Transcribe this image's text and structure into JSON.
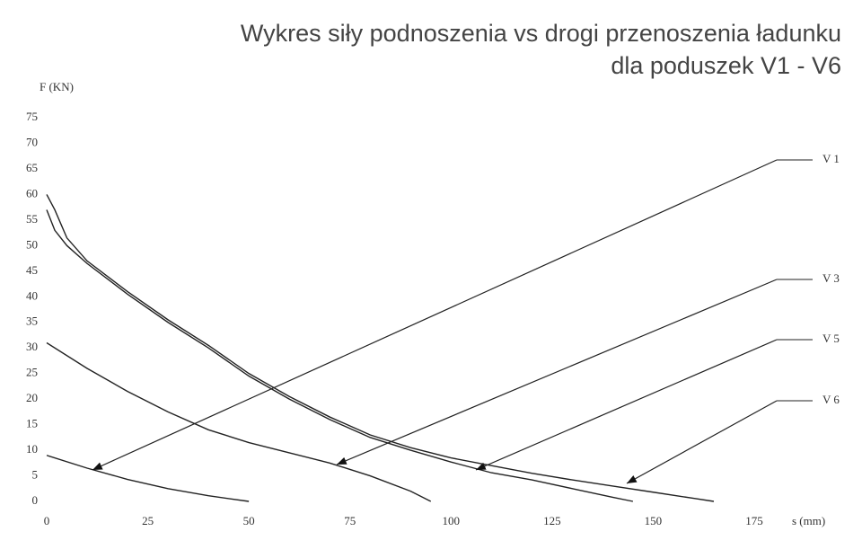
{
  "chart_data": {
    "type": "line",
    "title": [
      "Wykres siły podnoszenia vs drogi przenoszenia ładunku",
      "dla poduszek V1 - V6"
    ],
    "y_label": "F (KN)",
    "x_label": "s (mm)",
    "xlim": [
      0,
      175
    ],
    "ylim": [
      0,
      75
    ],
    "xticks": [
      0,
      25,
      50,
      75,
      100,
      125,
      150,
      175
    ],
    "yticks": [
      0,
      5,
      10,
      15,
      20,
      25,
      30,
      35,
      40,
      45,
      50,
      55,
      60,
      65,
      70,
      75
    ],
    "grid": false,
    "series": [
      {
        "name": "V 1",
        "color": "#222222",
        "x": [
          0,
          10,
          20,
          30,
          40,
          50
        ],
        "values": [
          9,
          6.5,
          4.3,
          2.5,
          1.1,
          0
        ]
      },
      {
        "name": "V 3",
        "color": "#222222",
        "x": [
          0,
          10,
          20,
          30,
          40,
          50,
          60,
          70,
          80,
          90,
          95
        ],
        "values": [
          31,
          26,
          21.5,
          17.5,
          14,
          11.5,
          9.5,
          7.5,
          5,
          2,
          0
        ]
      },
      {
        "name": "V 5",
        "color": "#222222",
        "x": [
          0,
          2,
          5,
          10,
          20,
          30,
          40,
          50,
          60,
          70,
          80,
          90,
          100,
          110,
          120,
          130,
          140,
          145
        ],
        "values": [
          57,
          53,
          50,
          46.5,
          40.5,
          35,
          30,
          24.5,
          20,
          16,
          12.5,
          10,
          7.7,
          5.6,
          4.2,
          2.5,
          0.8,
          0
        ]
      },
      {
        "name": "V 6",
        "color": "#222222",
        "x": [
          0,
          2,
          5,
          10,
          20,
          30,
          40,
          50,
          60,
          70,
          80,
          90,
          100,
          110,
          120,
          130,
          140,
          150,
          160,
          165
        ],
        "values": [
          60,
          57,
          51.5,
          47,
          41,
          35.5,
          30.5,
          25,
          20.5,
          16.5,
          13,
          10.5,
          8.5,
          7,
          5.5,
          4.2,
          3,
          1.8,
          0.6,
          0
        ]
      }
    ]
  }
}
